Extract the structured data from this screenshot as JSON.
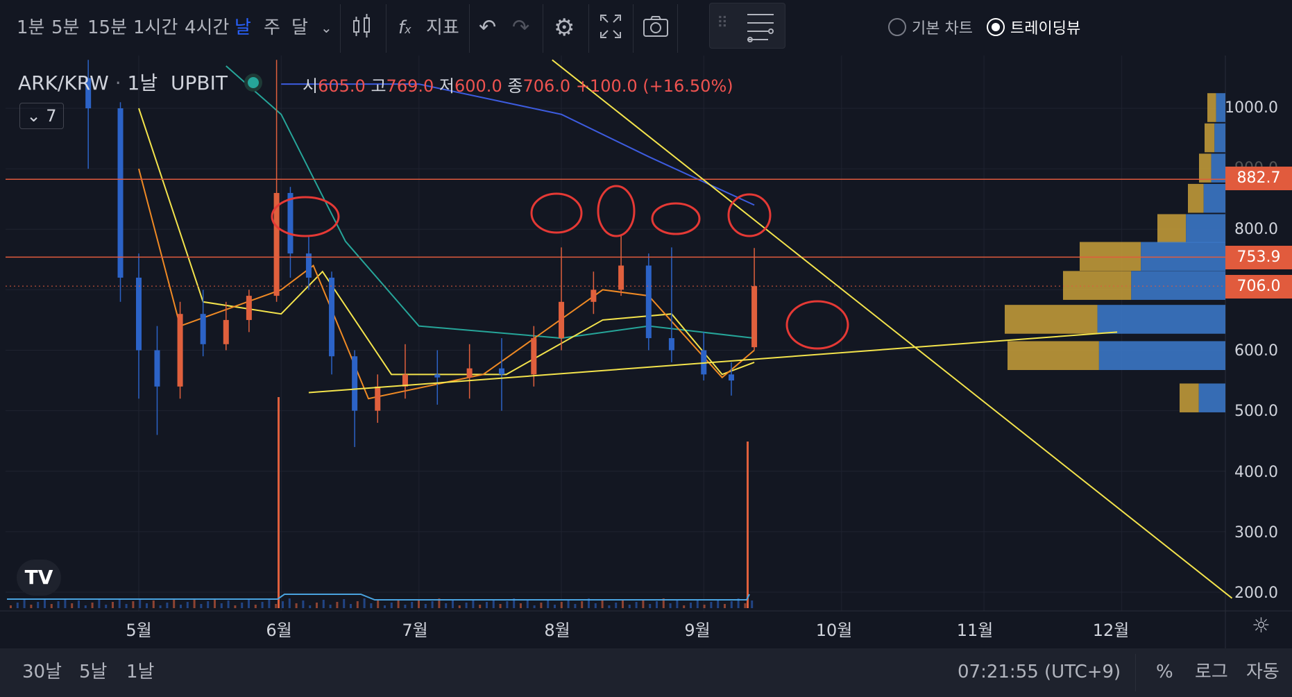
{
  "toolbar": {
    "intervals": [
      "1분",
      "5분",
      "15분",
      "1시간",
      "4시간",
      "날",
      "주",
      "달"
    ],
    "active_interval": "날",
    "indicators_label": "지표",
    "basic_chart_label": "기본 차트",
    "tradingview_label": "트레이딩뷰"
  },
  "legend": {
    "symbol": "ARK/KRW",
    "interval": "1날",
    "exchange": "UPBIT",
    "collapsed_count": "7",
    "ohlc": {
      "open_label": "시",
      "open": "605.0",
      "high_label": "고",
      "high": "769.0",
      "low_label": "저",
      "low": "600.0",
      "close_label": "종",
      "close": "706.0",
      "change": "+100.0 (+16.50%)"
    }
  },
  "price_axis": {
    "ticks": [
      "1000.0",
      "900.0",
      "800.0",
      "600.0",
      "500.0",
      "400.0",
      "300.0",
      "200.0"
    ],
    "badges": [
      {
        "value": "882.7",
        "color": "#e15b3d"
      },
      {
        "value": "753.9",
        "color": "#e15b3d"
      },
      {
        "value": "706.0",
        "color": "#e15b3d"
      }
    ]
  },
  "time_axis": {
    "months": [
      "5월",
      "6월",
      "7월",
      "8월",
      "9월",
      "10월",
      "11월",
      "12월"
    ]
  },
  "bottom": {
    "ranges": [
      "30날",
      "5날",
      "1날"
    ],
    "clock": "07:21:55 (UTC+9)",
    "percent": "%",
    "log": "로그",
    "auto": "자동"
  },
  "colors": {
    "up": "#2c63c7",
    "down": "#e0603d",
    "trend": "#f4e44c",
    "level": "#e15b3d",
    "mark": "#e53935",
    "ma_blue": "#3d5ce0",
    "ma_green": "#26a69a",
    "ma_yellow": "#f4e44c",
    "ma_orange": "#f08a24"
  },
  "chart_data": {
    "type": "candlestick",
    "y_range": [
      190,
      1080
    ],
    "horizontal_levels": [
      882.7,
      753.9,
      706.0
    ],
    "trendlines": [
      {
        "from": [
          "2021-06-07",
          530
        ],
        "to": [
          "2021-11-30",
          630
        ]
      },
      {
        "from": [
          "2021-07-30",
          1080
        ],
        "to": [
          "2021-12-25",
          190
        ]
      }
    ],
    "candles": [
      [
        "2021-04-20",
        1050,
        1080,
        900,
        1000
      ],
      [
        "2021-04-27",
        1000,
        1010,
        680,
        720
      ],
      [
        "2021-05-01",
        720,
        760,
        520,
        600
      ],
      [
        "2021-05-05",
        600,
        640,
        460,
        540
      ],
      [
        "2021-05-10",
        540,
        680,
        520,
        660
      ],
      [
        "2021-05-15",
        660,
        700,
        590,
        610
      ],
      [
        "2021-05-20",
        610,
        680,
        600,
        650
      ],
      [
        "2021-05-25",
        650,
        700,
        630,
        690
      ],
      [
        "2021-05-31",
        690,
        1080,
        680,
        860
      ],
      [
        "2021-06-03",
        860,
        870,
        720,
        760
      ],
      [
        "2021-06-07",
        760,
        790,
        700,
        720
      ],
      [
        "2021-06-12",
        720,
        730,
        560,
        590
      ],
      [
        "2021-06-17",
        590,
        600,
        440,
        500
      ],
      [
        "2021-06-22",
        500,
        560,
        480,
        540
      ],
      [
        "2021-06-28",
        540,
        610,
        520,
        560
      ],
      [
        "2021-07-05",
        560,
        600,
        510,
        555
      ],
      [
        "2021-07-12",
        555,
        610,
        520,
        570
      ],
      [
        "2021-07-19",
        570,
        620,
        500,
        560
      ],
      [
        "2021-07-26",
        560,
        640,
        540,
        620
      ],
      [
        "2021-08-01",
        620,
        770,
        600,
        680
      ],
      [
        "2021-08-08",
        680,
        730,
        660,
        700
      ],
      [
        "2021-08-14",
        700,
        790,
        690,
        740
      ],
      [
        "2021-08-20",
        740,
        760,
        600,
        620
      ],
      [
        "2021-08-25",
        620,
        770,
        580,
        600
      ],
      [
        "2021-09-01",
        600,
        630,
        550,
        560
      ],
      [
        "2021-09-07",
        560,
        580,
        525,
        550
      ],
      [
        "2021-09-12",
        605,
        769,
        600,
        706
      ]
    ]
  }
}
